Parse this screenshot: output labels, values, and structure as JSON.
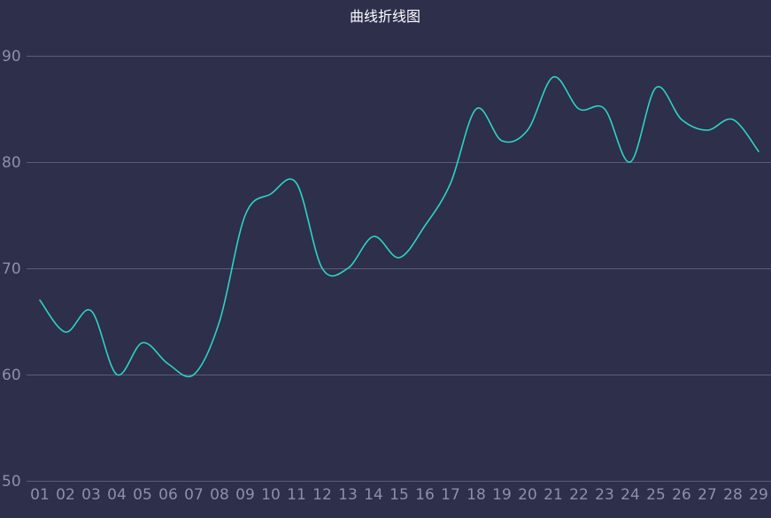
{
  "chart_data": {
    "type": "line",
    "title": "曲线折线图",
    "xlabel": "",
    "ylabel": "",
    "categories": [
      "01",
      "02",
      "03",
      "04",
      "05",
      "06",
      "07",
      "08",
      "09",
      "10",
      "11",
      "12",
      "13",
      "14",
      "15",
      "16",
      "17",
      "18",
      "19",
      "20",
      "21",
      "22",
      "23",
      "24",
      "25",
      "26",
      "27",
      "28",
      "29"
    ],
    "series": [
      {
        "values": [
          67,
          64,
          66,
          60,
          63,
          61,
          60,
          65,
          75,
          77,
          78,
          70,
          70,
          73,
          71,
          74,
          78,
          85,
          82,
          83,
          88,
          85,
          85,
          80,
          87,
          84,
          83,
          84,
          81
        ],
        "color": "#2ed3c5"
      }
    ],
    "ylim": [
      50,
      90
    ],
    "yticks": [
      50,
      60,
      70,
      80,
      90
    ],
    "grid": true,
    "smooth": true,
    "legend": "none"
  },
  "colors": {
    "background": "#2d2f4b",
    "grid": "#5b5d78",
    "tick_text": "#8e90a6",
    "title_text": "#ffffff"
  }
}
